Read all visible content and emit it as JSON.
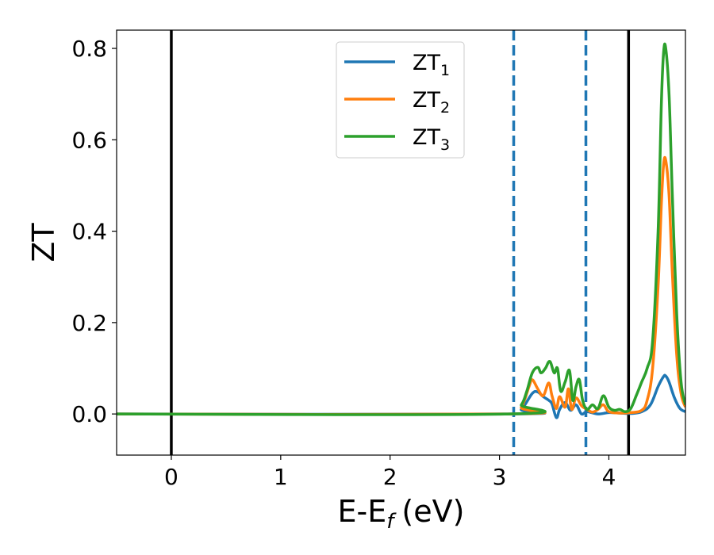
{
  "chart_data": {
    "type": "line",
    "xlabel": "E-E",
    "xlabel_subscript": "f",
    "xlabel_unit": "(eV)",
    "ylabel": "ZT",
    "xlim": [
      -0.5,
      4.7
    ],
    "ylim": [
      -0.09,
      0.84
    ],
    "xticks": [
      0,
      1,
      2,
      3,
      4
    ],
    "xtick_labels": [
      "0",
      "1",
      "2",
      "3",
      "4"
    ],
    "yticks": [
      0.0,
      0.2,
      0.4,
      0.6,
      0.8
    ],
    "ytick_labels": [
      "0.0",
      "0.2",
      "0.4",
      "0.6",
      "0.8"
    ],
    "grid": false,
    "legend_placement": "top-center",
    "vlines": [
      {
        "x": 0.0,
        "style": "solid",
        "color": "#000000"
      },
      {
        "x": 4.18,
        "style": "solid",
        "color": "#000000"
      },
      {
        "x": 3.13,
        "style": "dashed",
        "color": "#1f77b4"
      },
      {
        "x": 3.79,
        "style": "dashed",
        "color": "#1f77b4"
      }
    ],
    "series": [
      {
        "name": "ZT",
        "subscript": "1",
        "color": "#1f77b4",
        "x": [
          -0.5,
          3.1,
          3.2,
          3.3,
          3.35,
          3.4,
          3.45,
          3.48,
          3.52,
          3.55,
          3.6,
          3.65,
          3.7,
          3.75,
          3.8,
          3.9,
          4.0,
          4.1,
          4.2,
          4.3,
          4.38,
          4.45,
          4.5,
          4.52,
          4.55,
          4.6,
          4.65,
          4.7
        ],
        "y": [
          0.0,
          0.0,
          0.01,
          0.045,
          0.048,
          0.038,
          0.03,
          0.022,
          -0.008,
          0.01,
          0.025,
          0.008,
          0.02,
          0.0,
          0.005,
          0.0,
          0.003,
          0.002,
          0.001,
          0.005,
          0.02,
          0.06,
          0.082,
          0.083,
          0.07,
          0.035,
          0.012,
          0.005
        ]
      },
      {
        "name": "ZT",
        "subscript": "2",
        "color": "#ff7f0e",
        "x": [
          -0.5,
          3.1,
          3.2,
          3.27,
          3.3,
          3.35,
          3.4,
          3.45,
          3.48,
          3.52,
          3.55,
          3.6,
          3.63,
          3.66,
          3.7,
          3.75,
          3.8,
          3.85,
          3.9,
          3.95,
          4.0,
          4.1,
          4.2,
          4.3,
          4.35,
          4.4,
          4.45,
          4.48,
          4.5,
          4.52,
          4.55,
          4.58,
          4.62,
          4.66,
          4.7
        ],
        "y": [
          0.0,
          0.0,
          0.015,
          0.06,
          0.075,
          0.055,
          0.04,
          0.068,
          0.04,
          0.012,
          0.038,
          0.015,
          0.055,
          0.01,
          0.035,
          0.018,
          0.01,
          0.004,
          0.01,
          0.02,
          0.005,
          0.002,
          0.003,
          0.008,
          0.03,
          0.1,
          0.28,
          0.46,
          0.545,
          0.555,
          0.48,
          0.31,
          0.13,
          0.045,
          0.015
        ]
      },
      {
        "name": "ZT",
        "subscript": "3",
        "color": "#2ca02c",
        "x": [
          -0.5,
          3.1,
          3.2,
          3.25,
          3.3,
          3.35,
          3.38,
          3.42,
          3.46,
          3.5,
          3.53,
          3.56,
          3.6,
          3.64,
          3.67,
          3.7,
          3.73,
          3.76,
          3.8,
          3.85,
          3.9,
          3.95,
          4.0,
          4.05,
          4.1,
          4.15,
          4.2,
          4.25,
          4.3,
          4.35,
          4.4,
          4.45,
          4.48,
          4.5,
          4.52,
          4.55,
          4.58,
          4.62,
          4.66,
          4.7
        ],
        "y": [
          0.0,
          0.0,
          0.02,
          0.05,
          0.09,
          0.102,
          0.09,
          0.1,
          0.115,
          0.09,
          0.1,
          0.05,
          0.07,
          0.095,
          0.03,
          0.06,
          0.075,
          0.03,
          0.01,
          0.02,
          0.012,
          0.04,
          0.015,
          0.008,
          0.01,
          0.005,
          0.012,
          0.04,
          0.07,
          0.1,
          0.16,
          0.4,
          0.68,
          0.79,
          0.8,
          0.7,
          0.48,
          0.22,
          0.07,
          0.02
        ]
      }
    ]
  }
}
